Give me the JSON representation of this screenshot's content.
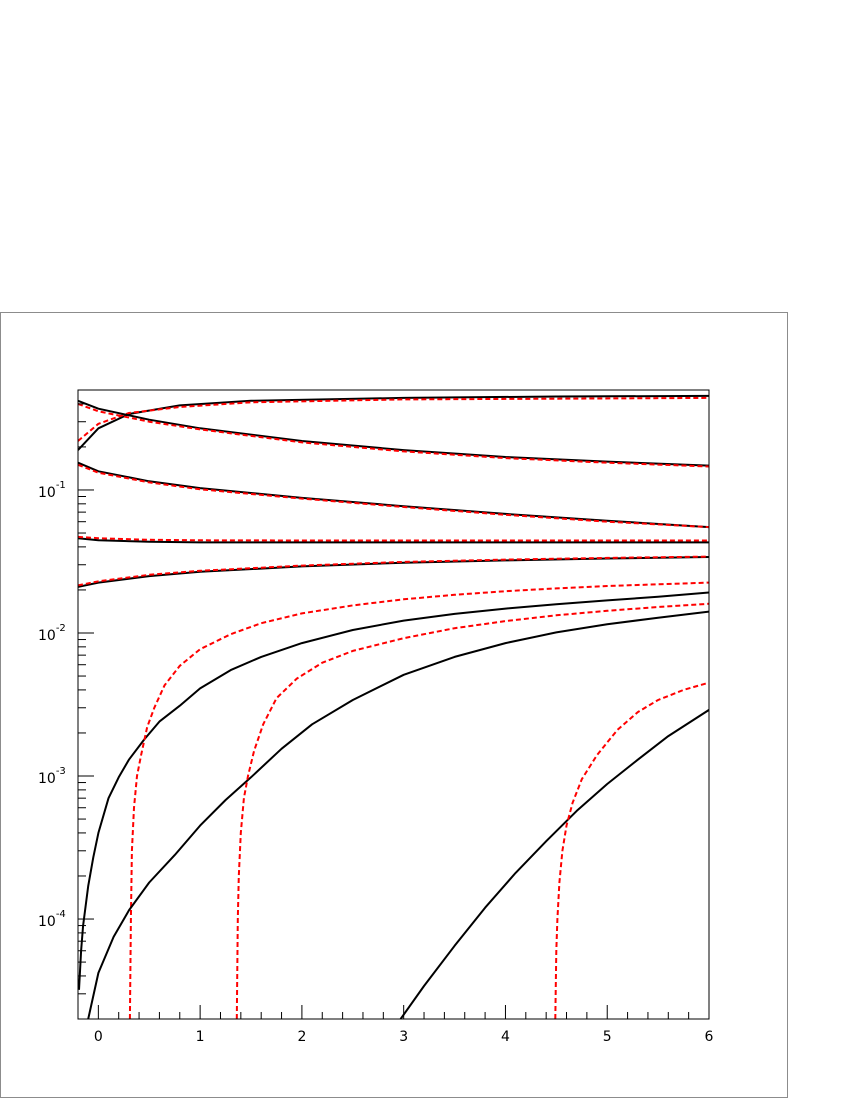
{
  "chart_data": {
    "type": "line",
    "title": "",
    "xlabel": "",
    "ylabel": "",
    "xlim": [
      -0.2,
      6.0
    ],
    "ylim": [
      2e-05,
      0.5
    ],
    "y_scale": "log",
    "grid": false,
    "legend": "none",
    "x_ticks": [
      0,
      1,
      2,
      3,
      4,
      5,
      6
    ],
    "x_tick_labels": [
      "0",
      "1",
      "2",
      "3",
      "4",
      "5",
      "6"
    ],
    "y_ticks": [
      0.0001,
      0.001,
      0.01,
      0.1
    ],
    "y_tick_labels": [
      {
        "base": "10",
        "exp": "-4"
      },
      {
        "base": "10",
        "exp": "-3"
      },
      {
        "base": "10",
        "exp": "-2"
      },
      {
        "base": "10",
        "exp": "-1"
      }
    ],
    "colors": {
      "solid": "#000000",
      "dashed": "#ff0000"
    },
    "series": [
      {
        "style": "solid",
        "x": [
          -0.2,
          0.0,
          0.3,
          0.8,
          1.5,
          3.0,
          4.5,
          6.0
        ],
        "y": [
          0.19,
          0.27,
          0.34,
          0.39,
          0.42,
          0.44,
          0.45,
          0.455
        ]
      },
      {
        "style": "dashed",
        "x": [
          -0.2,
          0.0,
          0.3,
          0.8,
          1.5,
          3.0,
          4.5,
          6.0
        ],
        "y": [
          0.22,
          0.29,
          0.345,
          0.38,
          0.41,
          0.43,
          0.435,
          0.44
        ]
      },
      {
        "style": "solid",
        "x": [
          -0.2,
          0.0,
          0.5,
          1.0,
          2.0,
          3.0,
          4.0,
          5.0,
          6.0
        ],
        "y": [
          0.42,
          0.37,
          0.31,
          0.27,
          0.22,
          0.19,
          0.17,
          0.158,
          0.148
        ]
      },
      {
        "style": "dashed",
        "x": [
          -0.2,
          0.0,
          0.5,
          1.0,
          2.0,
          3.0,
          4.0,
          5.0,
          6.0
        ],
        "y": [
          0.4,
          0.355,
          0.3,
          0.265,
          0.215,
          0.186,
          0.167,
          0.155,
          0.146
        ]
      },
      {
        "style": "solid",
        "x": [
          -0.2,
          0.0,
          0.5,
          1.0,
          2.0,
          3.0,
          4.0,
          5.0,
          6.0
        ],
        "y": [
          0.155,
          0.135,
          0.115,
          0.103,
          0.088,
          0.077,
          0.068,
          0.061,
          0.055
        ]
      },
      {
        "style": "dashed",
        "x": [
          -0.2,
          0.0,
          0.5,
          1.0,
          2.0,
          3.0,
          4.0,
          5.0,
          6.0
        ],
        "y": [
          0.15,
          0.132,
          0.113,
          0.101,
          0.087,
          0.076,
          0.067,
          0.06,
          0.055
        ]
      },
      {
        "style": "solid",
        "x": [
          -0.2,
          0.0,
          0.5,
          1.0,
          2.0,
          4.0,
          6.0
        ],
        "y": [
          0.046,
          0.0445,
          0.0435,
          0.043,
          0.043,
          0.043,
          0.043
        ]
      },
      {
        "style": "dashed",
        "x": [
          -0.2,
          0.0,
          0.5,
          1.0,
          2.0,
          4.0,
          6.0
        ],
        "y": [
          0.047,
          0.046,
          0.0448,
          0.0445,
          0.0443,
          0.0443,
          0.0443
        ]
      },
      {
        "style": "solid",
        "x": [
          -0.2,
          0.0,
          0.5,
          1.0,
          2.0,
          3.0,
          4.0,
          5.0,
          6.0
        ],
        "y": [
          0.021,
          0.0225,
          0.025,
          0.0268,
          0.0292,
          0.031,
          0.0322,
          0.0332,
          0.034
        ]
      },
      {
        "style": "dashed",
        "x": [
          -0.2,
          0.0,
          0.5,
          1.0,
          2.0,
          3.0,
          4.0,
          5.0,
          6.0
        ],
        "y": [
          0.0215,
          0.023,
          0.0255,
          0.0272,
          0.0296,
          0.0314,
          0.0326,
          0.0335,
          0.0342
        ]
      },
      {
        "style": "solid",
        "x": [
          -0.19,
          -0.17,
          -0.15,
          -0.1,
          -0.05,
          0.0,
          0.1,
          0.2,
          0.3,
          0.45,
          0.6,
          0.8,
          1.0,
          1.3,
          1.6,
          2.0,
          2.5,
          3.0,
          3.5,
          4.0,
          4.5,
          5.0,
          5.5,
          6.0
        ],
        "y": [
          3.2e-05,
          6e-05,
          9e-05,
          0.00017,
          0.00027,
          0.0004,
          0.0007,
          0.00098,
          0.0013,
          0.0018,
          0.0024,
          0.0031,
          0.0041,
          0.0055,
          0.0068,
          0.0085,
          0.0105,
          0.0122,
          0.0136,
          0.0148,
          0.0159,
          0.0169,
          0.0179,
          0.0192
        ]
      },
      {
        "style": "dashed",
        "x": [
          0.31,
          0.32,
          0.33,
          0.35,
          0.38,
          0.42,
          0.48,
          0.55,
          0.65,
          0.8,
          1.0,
          1.3,
          1.6,
          2.0,
          2.5,
          3.0,
          3.5,
          4.0,
          4.5,
          5.0,
          5.5,
          6.0
        ],
        "y": [
          2e-05,
          0.0001,
          0.0003,
          0.0006,
          0.001,
          0.0014,
          0.0022,
          0.003,
          0.0043,
          0.0059,
          0.0077,
          0.0098,
          0.0117,
          0.0137,
          0.0156,
          0.0172,
          0.0185,
          0.0196,
          0.0205,
          0.0213,
          0.0219,
          0.0225
        ]
      },
      {
        "style": "solid",
        "x": [
          -0.1,
          0.0,
          0.15,
          0.3,
          0.5,
          0.75,
          1.0,
          1.25,
          1.5,
          1.8,
          2.1,
          2.5,
          3.0,
          3.5,
          4.0,
          4.5,
          5.0,
          5.5,
          6.0
        ],
        "y": [
          2e-05,
          4.2e-05,
          7.5e-05,
          0.000115,
          0.00018,
          0.00028,
          0.00045,
          0.00068,
          0.00098,
          0.00155,
          0.0023,
          0.0034,
          0.0051,
          0.0068,
          0.0085,
          0.0101,
          0.0115,
          0.0128,
          0.0141
        ]
      },
      {
        "style": "dashed",
        "x": [
          1.36,
          1.37,
          1.38,
          1.4,
          1.43,
          1.47,
          1.53,
          1.62,
          1.75,
          1.95,
          2.2,
          2.5,
          3.0,
          3.5,
          4.0,
          4.5,
          5.0,
          5.5,
          6.0
        ],
        "y": [
          2e-05,
          0.0001,
          0.0002,
          0.0004,
          0.0007,
          0.001,
          0.0015,
          0.0023,
          0.0035,
          0.0048,
          0.0062,
          0.0075,
          0.0092,
          0.0108,
          0.0121,
          0.0133,
          0.0143,
          0.0152,
          0.016
        ]
      },
      {
        "style": "solid",
        "x": [
          2.97,
          3.2,
          3.5,
          3.8,
          4.1,
          4.4,
          4.7,
          5.0,
          5.3,
          5.6,
          6.0
        ],
        "y": [
          2e-05,
          3.4e-05,
          6.5e-05,
          0.00012,
          0.00021,
          0.00035,
          0.00057,
          0.00088,
          0.0013,
          0.0019,
          0.0029
        ]
      },
      {
        "style": "dashed",
        "x": [
          4.49,
          4.5,
          4.51,
          4.53,
          4.56,
          4.6,
          4.66,
          4.75,
          4.9,
          5.1,
          5.3,
          5.5,
          5.75,
          6.0
        ],
        "y": [
          2e-05,
          6e-05,
          0.0001,
          0.00018,
          0.0003,
          0.00045,
          0.00065,
          0.00095,
          0.0014,
          0.0021,
          0.0028,
          0.0034,
          0.004,
          0.0045
        ]
      }
    ]
  }
}
